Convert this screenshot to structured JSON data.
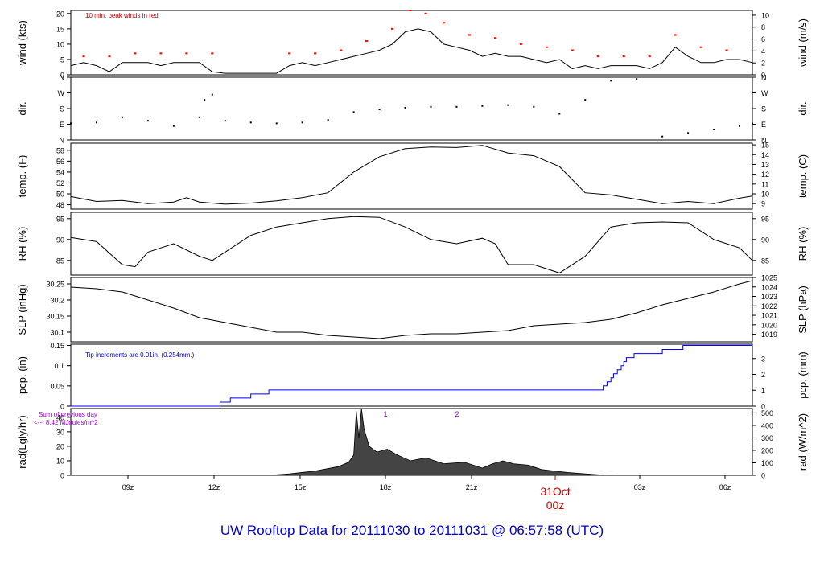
{
  "caption": "UW Rooftop Data for 20111030  to  20111031 @ 06:57:58  (UTC)",
  "chart_data": [
    {
      "type": "line",
      "ylabel": "wind (kts)",
      "ylabel_right": "wind (m/s)",
      "ylim": [
        0,
        21
      ],
      "yticks": [
        0,
        5,
        10,
        15,
        20
      ],
      "ylim_right": [
        0,
        10.8
      ],
      "yticks_right": [
        0,
        2,
        4,
        6,
        8,
        10
      ],
      "annotation": "10 min. peak winds in red",
      "series": [
        {
          "values_x": [
            0,
            0.5,
            1,
            1.5,
            2,
            2.5,
            3,
            3.5,
            4,
            4.5,
            5,
            5.5,
            6,
            6.5,
            7,
            7.5,
            8,
            8.5,
            9,
            9.5,
            10,
            10.5,
            11,
            11.5,
            12,
            12.5,
            13,
            13.5,
            14,
            14.5,
            15,
            15.5,
            16,
            16.5,
            17,
            17.5,
            18,
            18.5,
            19,
            19.5,
            20,
            20.5,
            21,
            21.5,
            22,
            22.5,
            23,
            23.5,
            24,
            24.5,
            25,
            25.5,
            26,
            26.5
          ],
          "values_y": [
            3,
            4,
            3,
            1,
            4,
            4,
            4,
            3,
            4,
            4,
            4,
            1,
            0.5,
            0.5,
            0.5,
            0.5,
            0.5,
            3,
            4,
            3,
            4,
            5,
            6,
            7,
            8,
            10,
            14,
            15,
            14,
            10,
            9,
            8,
            6,
            7,
            6,
            6,
            5,
            4,
            5,
            2,
            3,
            2,
            3,
            3,
            3,
            2,
            4,
            9,
            6,
            4,
            4,
            5,
            5,
            4
          ]
        },
        {
          "name": "10 min. peak winds",
          "values_x": [
            0.5,
            1.5,
            2.5,
            3.5,
            4.5,
            5.5,
            8.5,
            9.5,
            10.5,
            11.5,
            12.5,
            13.2,
            13.8,
            14.5,
            15.5,
            16.5,
            17.5,
            18.5,
            19.5,
            20.5,
            21.5,
            22.5,
            23.5,
            24.5,
            25.5
          ],
          "values_y": [
            6,
            6,
            7,
            7,
            7,
            7,
            7,
            7,
            8,
            11,
            15,
            21,
            20,
            17,
            13,
            12,
            10,
            9,
            8,
            6,
            6,
            6,
            13,
            9,
            8
          ]
        }
      ]
    },
    {
      "type": "scatter",
      "ylabel": "dir.",
      "ylabel_right": "dir.",
      "ylim": [
        0,
        360
      ],
      "yticks": [
        0,
        90,
        180,
        270,
        360
      ],
      "ytick_labels": [
        "N",
        "E",
        "S",
        "W",
        "N"
      ],
      "series": [
        {
          "values_x": [
            0,
            1,
            2,
            3,
            4,
            5,
            5.2,
            5.5,
            6,
            7,
            8,
            9,
            10,
            11,
            12,
            13,
            14,
            15,
            16,
            17,
            18,
            19,
            20,
            21,
            22,
            23,
            24,
            25,
            26,
            26.5
          ],
          "values_y": [
            95,
            100,
            130,
            110,
            80,
            130,
            230,
            260,
            110,
            100,
            95,
            100,
            115,
            160,
            175,
            185,
            190,
            190,
            195,
            200,
            190,
            150,
            230,
            340,
            350,
            20,
            40,
            60,
            80,
            95
          ]
        }
      ]
    },
    {
      "type": "line",
      "ylabel": "temp. (F)",
      "ylabel_right": "temp. (C)",
      "ylim": [
        47.2,
        59.3
      ],
      "yticks": [
        48,
        50,
        52,
        54,
        56,
        58
      ],
      "ylim_right": [
        8.44,
        15.17
      ],
      "yticks_right": [
        9,
        10,
        11,
        12,
        13,
        14,
        15
      ],
      "series": [
        {
          "values_x": [
            0,
            1,
            2,
            3,
            4,
            4.5,
            5,
            6,
            7,
            8,
            9,
            10,
            11,
            12,
            13,
            14,
            15,
            16,
            17,
            18,
            19,
            20,
            21,
            22,
            23,
            24,
            25,
            26,
            26.5
          ],
          "values_y": [
            49.5,
            48.6,
            48.8,
            48.2,
            48.5,
            49.3,
            48.5,
            48.1,
            48.3,
            48.7,
            49.3,
            50.2,
            54,
            56.8,
            58.3,
            58.6,
            58.5,
            58.9,
            57.5,
            57,
            55,
            50.2,
            49.8,
            49,
            48.2,
            48.6,
            48.2,
            49.2,
            49.6
          ]
        }
      ]
    },
    {
      "type": "line",
      "ylabel": "RH (%)",
      "ylabel_right": "RH (%)",
      "ylim": [
        81.5,
        96.5
      ],
      "yticks": [
        85,
        90,
        95
      ],
      "series": [
        {
          "values_x": [
            0,
            1,
            2,
            2.5,
            3,
            4,
            5,
            5.5,
            6,
            7,
            8,
            9,
            10,
            11,
            12,
            13,
            14,
            15,
            16,
            16.5,
            17,
            18,
            19,
            20,
            21,
            22,
            23,
            24,
            25,
            26,
            26.5
          ],
          "values_y": [
            90.5,
            89.5,
            84,
            83.5,
            87,
            89,
            86,
            85,
            87,
            91,
            93,
            94,
            95,
            95.5,
            95.3,
            93,
            90,
            89,
            90.3,
            89,
            84,
            84,
            82,
            86,
            93,
            94,
            94.2,
            94,
            90,
            88,
            85
          ]
        }
      ]
    },
    {
      "type": "line",
      "ylabel": "SLP (inHg)",
      "ylabel_right": "SLP (hPa)",
      "ylim": [
        30.07,
        30.27
      ],
      "yticks": [
        30.1,
        30.15,
        30.2,
        30.25
      ],
      "ylim_right": [
        1018.2,
        1025
      ],
      "yticks_right": [
        1019,
        1020,
        1021,
        1022,
        1023,
        1024,
        1025
      ],
      "series": [
        {
          "values_x": [
            0,
            1,
            2,
            3,
            4,
            5,
            6,
            7,
            8,
            9,
            10,
            11,
            12,
            13,
            14,
            15,
            16,
            17,
            18,
            19,
            20,
            21,
            22,
            23,
            24,
            25,
            26,
            26.5
          ],
          "values_y": [
            30.24,
            30.235,
            30.225,
            30.2,
            30.175,
            30.145,
            30.13,
            30.115,
            30.1,
            30.1,
            30.09,
            30.085,
            30.08,
            30.09,
            30.095,
            30.095,
            30.1,
            30.105,
            30.12,
            30.125,
            30.13,
            30.14,
            30.16,
            30.185,
            30.205,
            30.225,
            30.25,
            30.26
          ]
        }
      ]
    },
    {
      "type": "line",
      "ylabel": "pcp. (in)",
      "ylabel_right": "pcp. (mm)",
      "ylim": [
        0,
        0.153
      ],
      "yticks": [
        0.0,
        0.05,
        0.1,
        0.15
      ],
      "ylim_right": [
        0,
        3.9
      ],
      "yticks_right": [
        0,
        1,
        2,
        3
      ],
      "annotation": "Tip increments are 0.01in. (0.254mm.)",
      "series": [
        {
          "values_x": [
            0,
            5.8,
            5.8,
            6.2,
            6.2,
            7.0,
            7.0,
            7.7,
            7.7,
            20.7,
            20.7,
            20.85,
            20.85,
            21.0,
            21.0,
            21.1,
            21.1,
            21.25,
            21.25,
            21.4,
            21.4,
            21.5,
            21.5,
            21.6,
            21.6,
            21.9,
            21.9,
            23.0,
            23.0,
            23.8,
            23.8,
            24.8,
            24.8,
            26.5
          ],
          "values_y": [
            0,
            0,
            0.01,
            0.01,
            0.02,
            0.02,
            0.03,
            0.03,
            0.04,
            0.04,
            0.05,
            0.05,
            0.06,
            0.06,
            0.07,
            0.07,
            0.08,
            0.08,
            0.09,
            0.09,
            0.1,
            0.1,
            0.11,
            0.11,
            0.12,
            0.12,
            0.13,
            0.13,
            0.14,
            0.14,
            0.15,
            0.15,
            0.15,
            0.15
          ]
        }
      ]
    },
    {
      "type": "area",
      "ylabel": "rad(Lgly/hr)",
      "ylabel_right": "rad (W/m^2)",
      "ylim": [
        0,
        46
      ],
      "yticks": [
        0,
        10,
        20,
        30,
        40
      ],
      "ylim_right": [
        0,
        535
      ],
      "yticks_right": [
        0,
        100,
        200,
        300,
        400,
        500
      ],
      "annotation_line1": "Sum of previous day",
      "annotation_line2": "<--- 8.42 MJoules/m^2",
      "markers": [
        "1",
        "2"
      ],
      "series": [
        {
          "values_x": [
            7.7,
            8.5,
            9.5,
            10.4,
            10.8,
            11.0,
            11.1,
            11.2,
            11.3,
            11.4,
            11.6,
            11.9,
            12.3,
            12.7,
            13.2,
            13.8,
            14.5,
            15.3,
            16,
            16.4,
            16.8,
            17.2,
            17.8,
            18.3,
            18.8,
            19.3,
            20.0,
            20.6,
            21.2
          ],
          "values_y": [
            0,
            1,
            3,
            6,
            9,
            14,
            44,
            26,
            46,
            32,
            20,
            16,
            18,
            14,
            10,
            12,
            8,
            9,
            5,
            8,
            10,
            8,
            7,
            4,
            3,
            2,
            1,
            0.3,
            0
          ]
        }
      ]
    }
  ],
  "x_axis": {
    "tick_labels": [
      "09z",
      "12z",
      "15z",
      "18z",
      "21z",
      "03z",
      "06z"
    ],
    "date_label": "31Oct",
    "date_time_label": "00z"
  }
}
